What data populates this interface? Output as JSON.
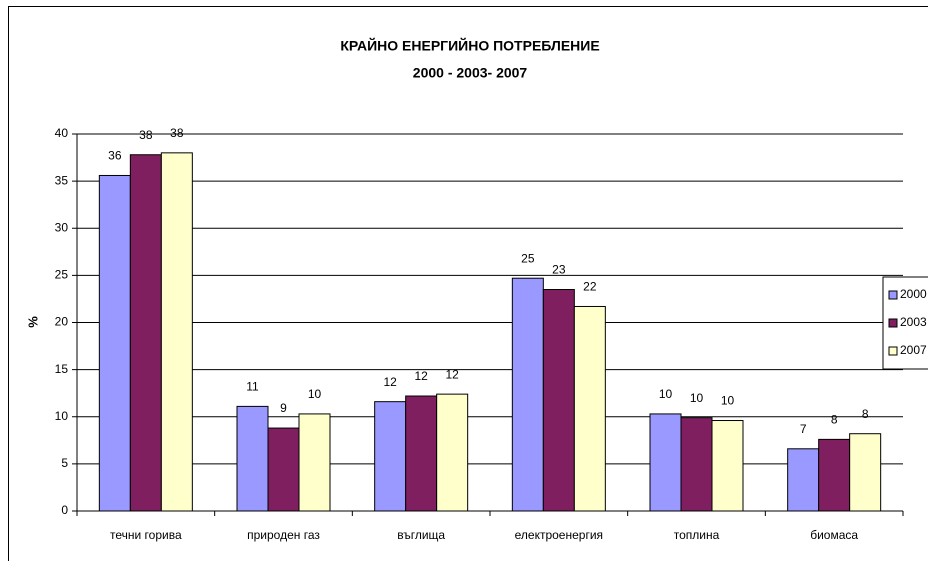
{
  "chart_data": {
    "type": "bar",
    "title": "КРАЙНО ЕНЕРГИЙНО ПОТРЕБЛЕНИЕ",
    "subtitle": "2000 - 2003- 2007",
    "y_label": "%",
    "categories": [
      "течни горива",
      "природен газ",
      "въглища",
      "електроенергия",
      "топлина",
      "биомаса"
    ],
    "series": [
      {
        "name": "2000",
        "color": "#9999ff",
        "values": [
          35.6,
          11.1,
          11.6,
          24.7,
          10.3,
          6.6
        ],
        "value_labels": [
          "36",
          "11",
          "12",
          "25",
          "10",
          "7"
        ]
      },
      {
        "name": "2003",
        "color": "#7f1f5f",
        "values": [
          37.8,
          8.8,
          12.2,
          23.5,
          9.9,
          7.6
        ],
        "value_labels": [
          "38",
          "9",
          "12",
          "23",
          "10",
          "8"
        ]
      },
      {
        "name": "2007",
        "color": "#ffffcc",
        "values": [
          38.0,
          10.3,
          12.4,
          21.7,
          9.6,
          8.2
        ],
        "value_labels": [
          "38",
          "10",
          "12",
          "22",
          "10",
          "8"
        ]
      }
    ],
    "ylim": [
      0,
      40
    ],
    "yticks": [
      0,
      5,
      10,
      15,
      20,
      25,
      30,
      35,
      40
    ],
    "grid": true,
    "legend": "right"
  }
}
